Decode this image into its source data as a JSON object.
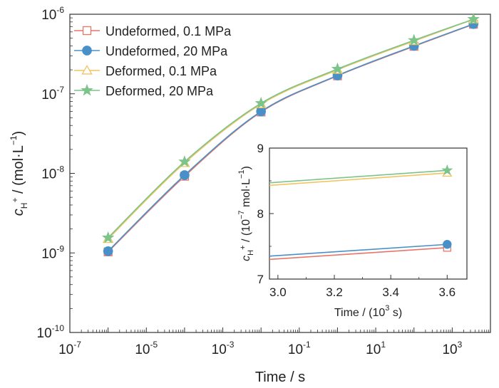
{
  "chart_data": [
    {
      "id": "main",
      "type": "line",
      "x_scale": "log",
      "y_scale": "log",
      "xlim": [
        1e-07,
        10000
      ],
      "ylim": [
        1e-10,
        1e-06
      ],
      "x_ticks": [
        {
          "base": "10",
          "exp": "-7",
          "value": 1e-07
        },
        {
          "base": "10",
          "exp": "-5",
          "value": 1e-05
        },
        {
          "base": "10",
          "exp": "-3",
          "value": 0.001
        },
        {
          "base": "10",
          "exp": "-1",
          "value": 0.1
        },
        {
          "base": "10",
          "exp": "1",
          "value": 10
        },
        {
          "base": "10",
          "exp": "3",
          "value": 1000
        }
      ],
      "y_ticks": [
        {
          "base": "10",
          "exp": "-10",
          "value": 1e-10
        },
        {
          "base": "10",
          "exp": "-9",
          "value": 1e-09
        },
        {
          "base": "10",
          "exp": "-8",
          "value": 1e-08
        },
        {
          "base": "10",
          "exp": "-7",
          "value": 1e-07
        },
        {
          "base": "10",
          "exp": "-6",
          "value": 1e-06
        }
      ],
      "xlabel": "Time / s",
      "ylabel": {
        "symbol": "c",
        "sub": "H",
        "sup": "+",
        "unit": " / (mol·L",
        "unit_sup": "−1",
        "close": ")"
      },
      "legend_position": "top-left",
      "x": [
        1e-06,
        0.0001,
        0.01,
        1,
        100,
        3600
      ],
      "series": [
        {
          "name": "Undeformed, 0.1 MPa",
          "color": "#e8756a",
          "marker": "open-square",
          "values": [
            1.03e-09,
            9.2e-09,
            5.9e-08,
            1.68e-07,
            3.95e-07,
            7.48e-07
          ]
        },
        {
          "name": "Undeformed, 20 MPa",
          "color": "#4a90c8",
          "marker": "filled-circle",
          "values": [
            1.05e-09,
            9.5e-09,
            6e-08,
            1.7e-07,
            4e-07,
            7.53e-07
          ]
        },
        {
          "name": "Deformed, 0.1 MPa",
          "color": "#f2c35e",
          "marker": "open-triangle",
          "values": [
            1.5e-09,
            1.35e-08,
            7.4e-08,
            2e-07,
            4.6e-07,
            8.62e-07
          ]
        },
        {
          "name": "Deformed, 20 MPa",
          "color": "#7cc48a",
          "marker": "star",
          "values": [
            1.55e-09,
            1.4e-08,
            7.6e-08,
            2.05e-07,
            4.7e-07,
            8.66e-07
          ]
        }
      ]
    },
    {
      "id": "inset",
      "type": "line",
      "xlim": [
        2.97,
        3.67
      ],
      "ylim": [
        7,
        9
      ],
      "x_ticks": [
        "3.0",
        "3.2",
        "3.4",
        "3.6"
      ],
      "y_ticks": [
        "7",
        "8",
        "9"
      ],
      "xlabel": {
        "text": "Time / (10",
        "sup": "3",
        "close": " s)"
      },
      "ylabel": {
        "symbol": "c",
        "sub": "H",
        "sup": "+",
        "unit": " / (10",
        "unit_sup": "−7",
        "unit2": " mol·L",
        "unit2_sup": "−1",
        "close": ")"
      },
      "series": [
        {
          "color": "#e8756a",
          "marker": "open-square",
          "x": [
            2.97,
            3.6
          ],
          "values": [
            7.3,
            7.48
          ]
        },
        {
          "color": "#4a90c8",
          "marker": "filled-circle",
          "x": [
            2.97,
            3.6
          ],
          "values": [
            7.35,
            7.53
          ]
        },
        {
          "color": "#f2c35e",
          "marker": "open-triangle",
          "x": [
            2.97,
            3.6
          ],
          "values": [
            8.43,
            8.62
          ]
        },
        {
          "color": "#7cc48a",
          "marker": "star",
          "x": [
            2.97,
            3.6
          ],
          "values": [
            8.47,
            8.66
          ]
        }
      ]
    }
  ]
}
